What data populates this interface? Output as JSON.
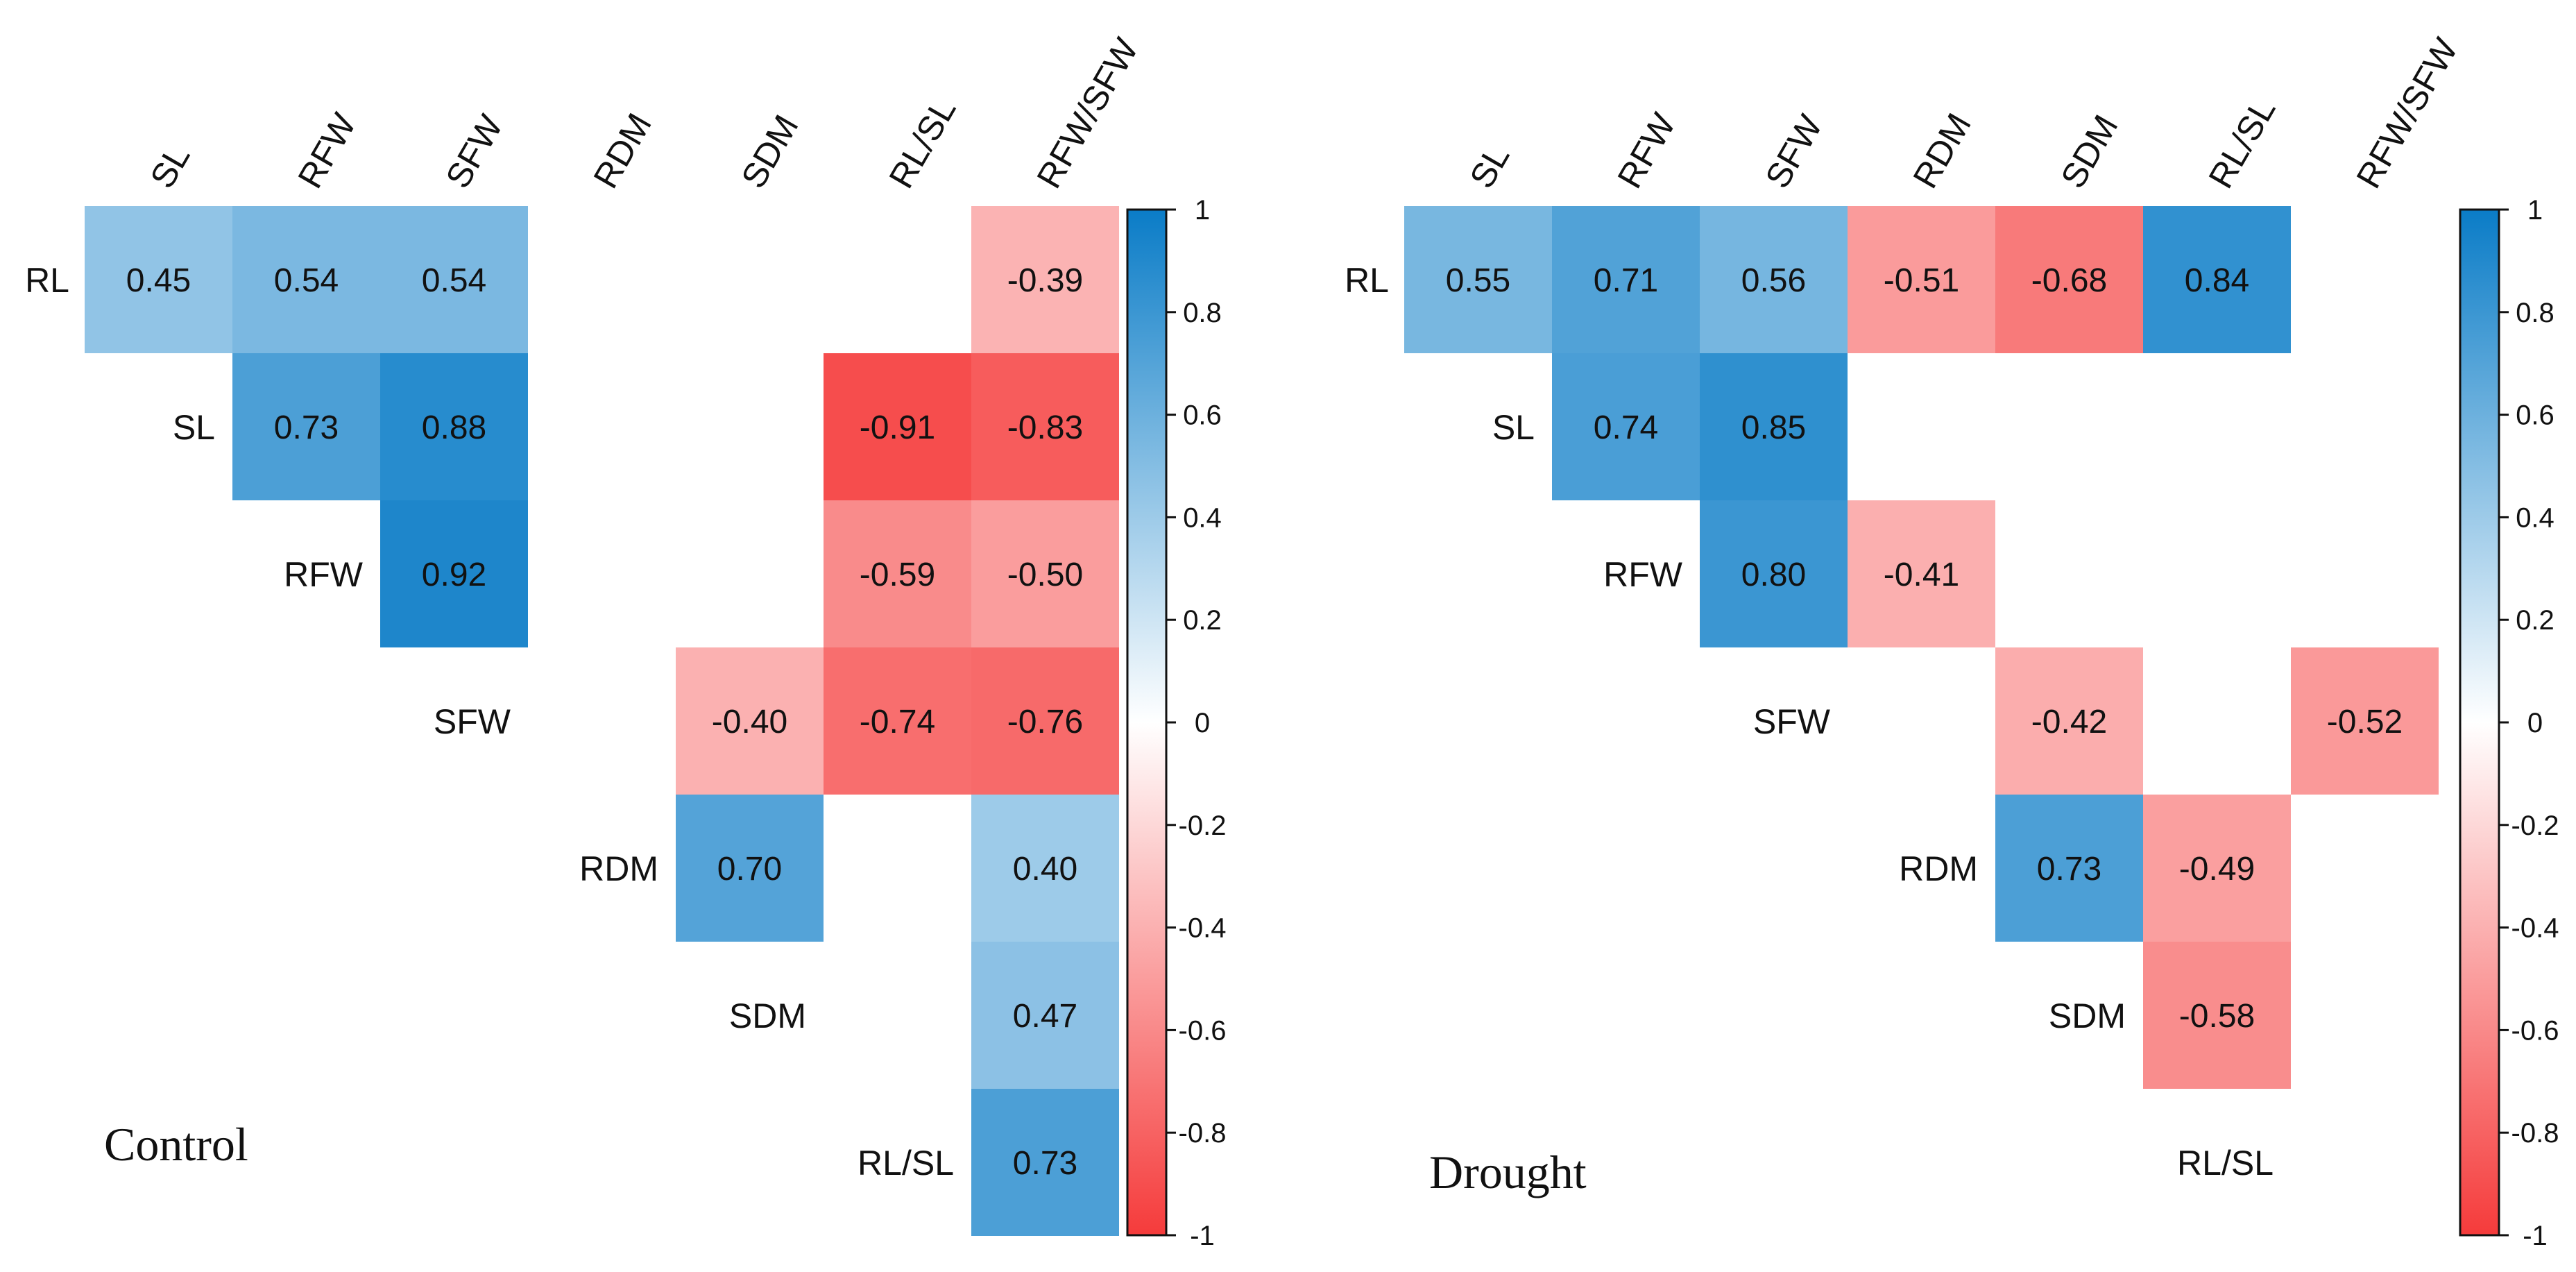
{
  "chart_data": [
    {
      "type": "heatmap",
      "panel_label": "Control",
      "columns": [
        "SL",
        "RFW",
        "SFW",
        "RDM",
        "SDM",
        "RL/SL",
        "RFW/SFW"
      ],
      "rows": [
        "RL",
        "SL",
        "RFW",
        "SFW",
        "RDM",
        "SDM",
        "RL/SL"
      ],
      "cells": [
        {
          "row": "RL",
          "col": "SL",
          "value": 0.45
        },
        {
          "row": "RL",
          "col": "RFW",
          "value": 0.54
        },
        {
          "row": "RL",
          "col": "SFW",
          "value": 0.54
        },
        {
          "row": "RL",
          "col": "RFW/SFW",
          "value": -0.39
        },
        {
          "row": "SL",
          "col": "RFW",
          "value": 0.73
        },
        {
          "row": "SL",
          "col": "SFW",
          "value": 0.88
        },
        {
          "row": "SL",
          "col": "RL/SL",
          "value": -0.91
        },
        {
          "row": "SL",
          "col": "RFW/SFW",
          "value": -0.83
        },
        {
          "row": "RFW",
          "col": "SFW",
          "value": 0.92
        },
        {
          "row": "RFW",
          "col": "RL/SL",
          "value": -0.59
        },
        {
          "row": "RFW",
          "col": "RFW/SFW",
          "value": -0.5
        },
        {
          "row": "SFW",
          "col": "SDM",
          "value": -0.4
        },
        {
          "row": "SFW",
          "col": "RL/SL",
          "value": -0.74
        },
        {
          "row": "SFW",
          "col": "RFW/SFW",
          "value": -0.76
        },
        {
          "row": "RDM",
          "col": "SDM",
          "value": 0.7
        },
        {
          "row": "RDM",
          "col": "RFW/SFW",
          "value": 0.4
        },
        {
          "row": "SDM",
          "col": "RFW/SFW",
          "value": 0.47
        },
        {
          "row": "RL/SL",
          "col": "RFW/SFW",
          "value": 0.73
        }
      ],
      "colorbar": {
        "range": [
          -1,
          1
        ],
        "ticks": [
          "1",
          "0.8",
          "0.6",
          "0.4",
          "0.2",
          "0",
          "-0.2",
          "-0.4",
          "-0.6",
          "-0.8",
          "-1"
        ],
        "colors": {
          "positive": "#0A7CC7",
          "zero": "#FFFFFF",
          "negative": "#F53B3B"
        }
      }
    },
    {
      "type": "heatmap",
      "panel_label": "Drought",
      "columns": [
        "SL",
        "RFW",
        "SFW",
        "RDM",
        "SDM",
        "RL/SL",
        "RFW/SFW"
      ],
      "rows": [
        "RL",
        "SL",
        "RFW",
        "SFW",
        "RDM",
        "SDM",
        "RL/SL"
      ],
      "cells": [
        {
          "row": "RL",
          "col": "SL",
          "value": 0.55
        },
        {
          "row": "RL",
          "col": "RFW",
          "value": 0.71
        },
        {
          "row": "RL",
          "col": "SFW",
          "value": 0.56
        },
        {
          "row": "RL",
          "col": "RDM",
          "value": -0.51
        },
        {
          "row": "RL",
          "col": "SDM",
          "value": -0.68
        },
        {
          "row": "RL",
          "col": "RL/SL",
          "value": 0.84
        },
        {
          "row": "SL",
          "col": "RFW",
          "value": 0.74
        },
        {
          "row": "SL",
          "col": "SFW",
          "value": 0.85
        },
        {
          "row": "RFW",
          "col": "SFW",
          "value": 0.8
        },
        {
          "row": "RFW",
          "col": "RDM",
          "value": -0.41
        },
        {
          "row": "SFW",
          "col": "SDM",
          "value": -0.42
        },
        {
          "row": "SFW",
          "col": "RFW/SFW",
          "value": -0.52
        },
        {
          "row": "RDM",
          "col": "SDM",
          "value": 0.73
        },
        {
          "row": "RDM",
          "col": "RL/SL",
          "value": -0.49
        },
        {
          "row": "SDM",
          "col": "RL/SL",
          "value": -0.58
        }
      ],
      "colorbar": {
        "range": [
          -1,
          1
        ],
        "ticks": [
          "1",
          "0.8",
          "0.6",
          "0.4",
          "0.2",
          "0",
          "-0.2",
          "-0.4",
          "-0.6",
          "-0.8",
          "-1"
        ],
        "colors": {
          "positive": "#0A7CC7",
          "zero": "#FFFFFF",
          "negative": "#F53B3B"
        }
      }
    }
  ]
}
